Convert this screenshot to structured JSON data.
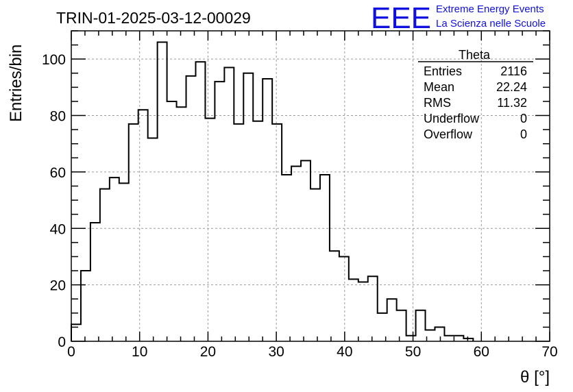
{
  "title": "TRIN-01-2025-03-12-00029",
  "logo": {
    "mark": "EEE",
    "line1": "Extreme Energy Events",
    "line2": "La Scienza nelle Scuole",
    "color": "#1010e0"
  },
  "stats": {
    "name": "Theta",
    "rows": [
      {
        "label": "Entries",
        "value": "2116"
      },
      {
        "label": "Mean",
        "value": "22.24"
      },
      {
        "label": "RMS",
        "value": "11.32"
      },
      {
        "label": "Underflow",
        "value": "0"
      },
      {
        "label": "Overflow",
        "value": "0"
      }
    ]
  },
  "chart_data": {
    "type": "bar",
    "style": "step-histogram",
    "xlabel": "θ [°]",
    "ylabel": "Entries/bin",
    "xlim": [
      0,
      70
    ],
    "ylim": [
      0,
      110
    ],
    "grid": true,
    "x_ticks": [
      0,
      10,
      20,
      30,
      40,
      50,
      60,
      70
    ],
    "y_ticks": [
      0,
      20,
      40,
      60,
      80,
      100
    ],
    "bin_edges": [
      0,
      1.4,
      2.8,
      4.2,
      5.6,
      7.0,
      8.4,
      9.8,
      11.2,
      12.6,
      14.0,
      15.4,
      16.8,
      18.2,
      19.6,
      21.0,
      22.4,
      23.8,
      25.2,
      26.6,
      28.0,
      29.4,
      30.8,
      32.2,
      33.6,
      35.0,
      36.4,
      37.8,
      39.2,
      40.6,
      42.0,
      43.4,
      44.8,
      46.2,
      47.6,
      49.0,
      50.4,
      51.8,
      53.2,
      54.6,
      56.0,
      57.4,
      58.8
    ],
    "values": [
      6,
      25,
      42,
      54,
      58,
      56,
      77,
      82,
      72,
      106,
      85,
      83,
      94,
      99,
      79,
      92,
      97,
      77,
      95,
      78,
      93,
      77,
      59,
      62,
      64,
      54,
      59,
      32,
      30,
      22,
      21,
      23,
      10,
      15,
      11,
      2,
      11,
      4,
      5,
      2,
      2,
      1
    ],
    "line_color": "#000000"
  }
}
